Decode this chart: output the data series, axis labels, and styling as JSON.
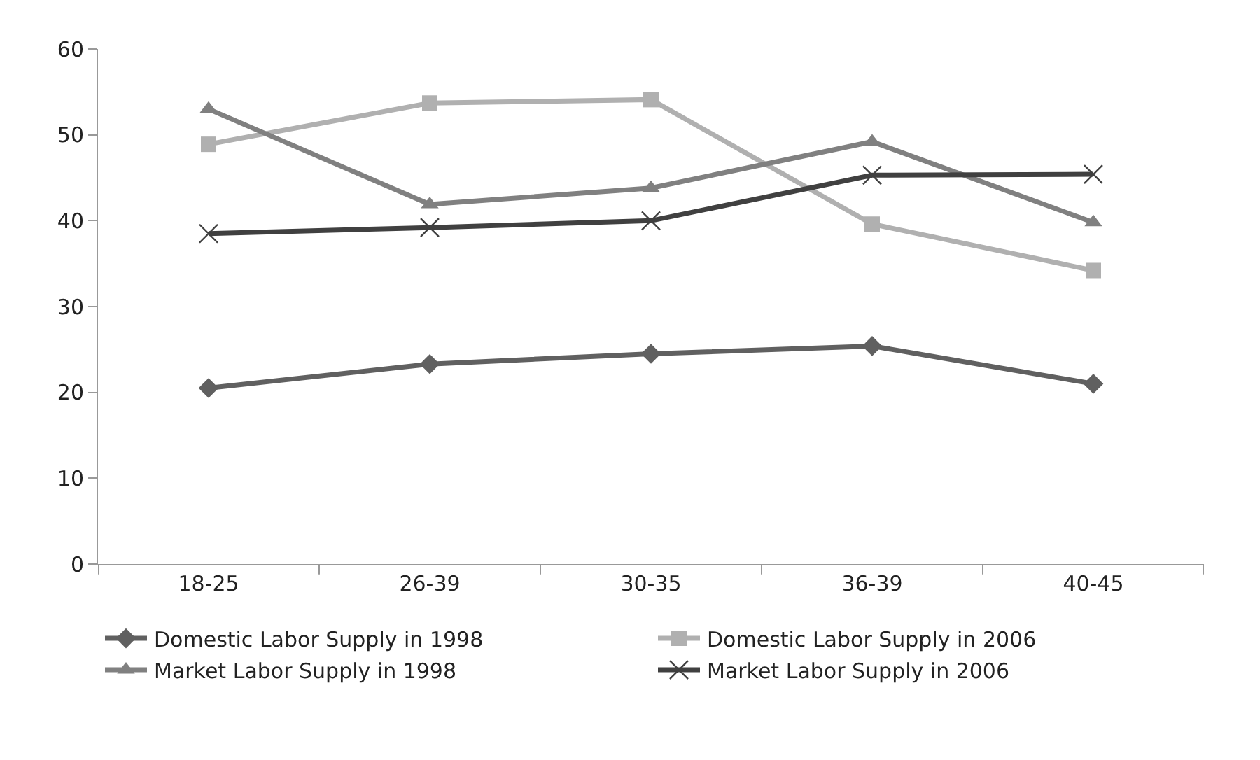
{
  "chart_data": {
    "type": "line",
    "categories": [
      "18-25",
      "26-39",
      "30-35",
      "36-39",
      "40-45"
    ],
    "series": [
      {
        "name": "Domestic Labor Supply in 1998",
        "color": "#606060",
        "marker": "diamond",
        "values": [
          20.5,
          23.3,
          24.5,
          25.4,
          21.0
        ]
      },
      {
        "name": "Domestic Labor Supply in 2006",
        "color": "#b0b0b0",
        "marker": "square",
        "values": [
          48.9,
          53.7,
          54.1,
          39.6,
          34.2
        ]
      },
      {
        "name": "Market Labor Supply in 1998",
        "color": "#808080",
        "marker": "triangle",
        "values": [
          53.0,
          41.9,
          43.8,
          49.2,
          39.8
        ]
      },
      {
        "name": "Market Labor Supply in 2006",
        "color": "#404040",
        "marker": "cross",
        "values": [
          38.5,
          39.2,
          40.0,
          45.3,
          45.4
        ]
      }
    ],
    "ylim": [
      0,
      60
    ],
    "yticks": [
      0,
      10,
      20,
      30,
      40,
      50,
      60
    ],
    "legend": "bottom"
  }
}
